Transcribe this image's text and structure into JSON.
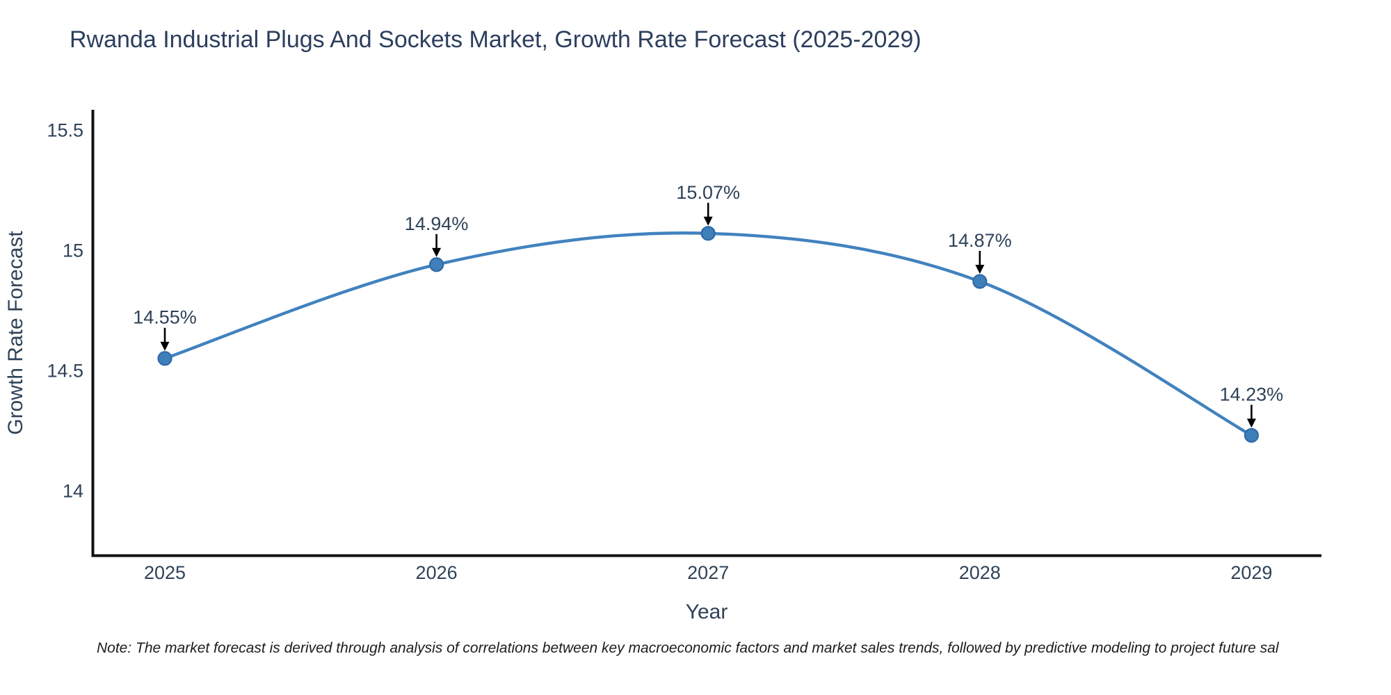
{
  "title": "Rwanda Industrial Plugs And Sockets Market, Growth Rate Forecast (2025-2029)",
  "note": "Note: The market forecast is derived through analysis of correlations between key macroeconomic factors and market sales trends, followed by predictive modeling to project future sal",
  "chart_data": {
    "type": "line",
    "title": "Rwanda Industrial Plugs And Sockets Market, Growth Rate Forecast (2025-2029)",
    "categories": [
      "2025",
      "2026",
      "2027",
      "2028",
      "2029"
    ],
    "x": [
      2025,
      2026,
      2027,
      2028,
      2029
    ],
    "series": [
      {
        "name": "Growth Rate Forecast",
        "values": [
          14.55,
          14.94,
          15.07,
          14.87,
          14.23
        ]
      }
    ],
    "data_labels": [
      "14.55%",
      "14.94%",
      "15.07%",
      "14.87%",
      "14.23%"
    ],
    "xlabel": "Year",
    "ylabel": "Growth Rate Forecast",
    "ytick_labels": [
      "15.5",
      "15",
      "14.5",
      "14"
    ],
    "ytick_values": [
      15.5,
      15,
      14.5,
      14
    ],
    "ylim": [
      13.72,
      15.58
    ],
    "xlim": [
      2024.73,
      2029.26
    ],
    "grid": false,
    "legend_position": "none",
    "line_shape": "spline",
    "marker": "circle",
    "annotations_have_arrows": true,
    "colors": {
      "line": "#4182be",
      "marker_fill": "#3f7fba",
      "marker_edge": "#2f6aa5",
      "arrow": "#000000",
      "axis": "#111111",
      "text": "#2f4258",
      "title": "#2c3e5d"
    }
  }
}
